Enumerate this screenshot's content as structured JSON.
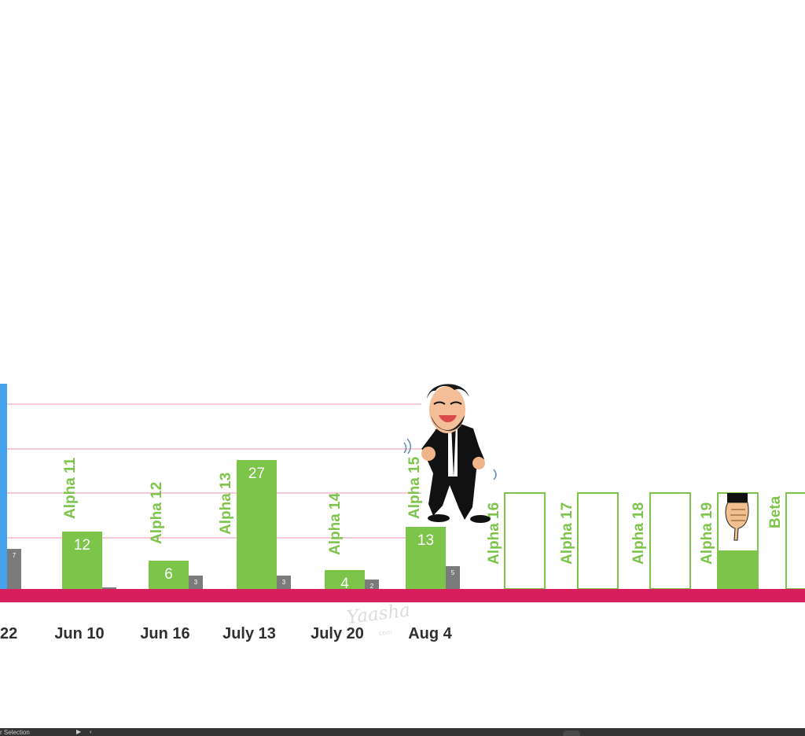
{
  "chart_data": {
    "type": "bar",
    "visible_partial_date": "22",
    "categories": [
      "Jun 10",
      "Jun 16",
      "July 13",
      "July 20",
      "Aug 4",
      "",
      "",
      "",
      "",
      ""
    ],
    "milestones": [
      "Alpha 11",
      "Alpha 12",
      "Alpha 13",
      "Alpha 14",
      "Alpha 15",
      "Alpha 16",
      "Alpha 17",
      "Alpha 18",
      "Alpha 19",
      "Beta"
    ],
    "series": [
      {
        "values": [
          12,
          6,
          27,
          4,
          13,
          null,
          null,
          null,
          null,
          null
        ]
      },
      {
        "values": [
          0,
          3,
          3,
          2,
          5,
          null,
          null,
          null,
          null,
          null
        ]
      }
    ],
    "partial_first_bar": {
      "green_value": null,
      "gray_value": 7
    },
    "alpha19_progress_fraction": 0.4,
    "value_labels": [
      "12",
      "6",
      "27",
      "4",
      "13"
    ],
    "gray_labels": [
      "",
      "3",
      "3",
      "2",
      "5"
    ],
    "first_gray_label": "7",
    "grid": true,
    "colors": {
      "green": "#7dc44a",
      "blue": "#43a3ee",
      "gray": "#7b7b7b",
      "baseline": "#d81f5e",
      "grid": "#f4b9c8"
    }
  },
  "watermark": {
    "main": "Yaasha",
    "sub": "com"
  },
  "status_bar": {
    "label": "r Selection",
    "play_icon": "play-icon",
    "chevron_icon": "chevron-left-icon"
  }
}
